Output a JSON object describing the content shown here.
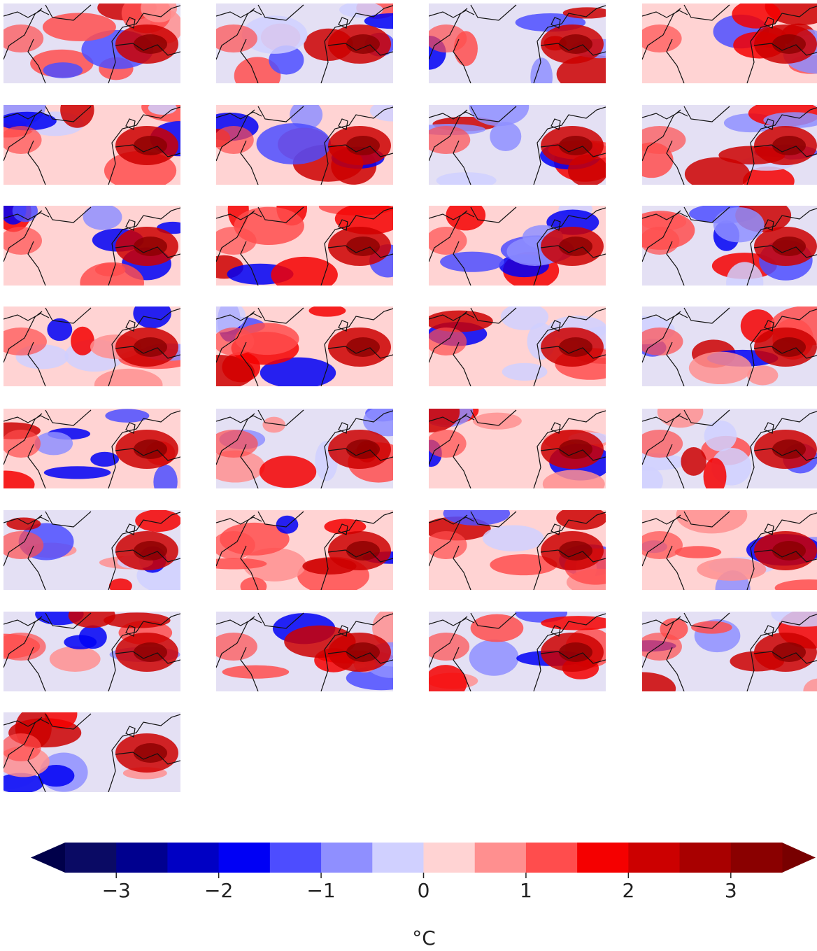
{
  "colorbar": {
    "levels": [
      -3.5,
      -3,
      -2.5,
      -2,
      -1.5,
      -1,
      -0.5,
      0,
      0.5,
      1,
      1.5,
      2,
      2.5,
      3,
      3.5
    ],
    "colors": [
      "#0a0a64",
      "#00008f",
      "#0000c4",
      "#0000f5",
      "#4d4dff",
      "#8f8fff",
      "#d0d0ff",
      "#ffd3d3",
      "#ff8f8f",
      "#ff4d4d",
      "#f50000",
      "#cc0000",
      "#a80000",
      "#8a0000"
    ],
    "under_color": "#00004a",
    "over_color": "#780000",
    "ticks": [
      {
        "value": -3,
        "label": "−3"
      },
      {
        "value": -2,
        "label": "−2"
      },
      {
        "value": -1,
        "label": "−1"
      },
      0,
      1,
      2,
      3
    ],
    "label": "°C"
  }
}
